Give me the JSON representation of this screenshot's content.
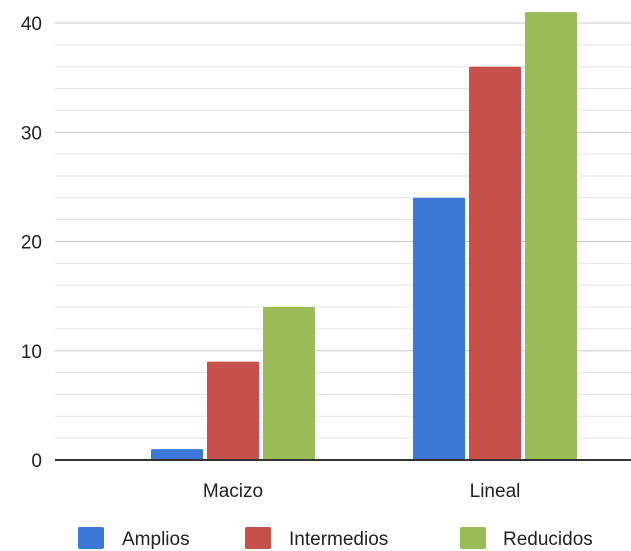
{
  "chart_data": {
    "type": "bar",
    "title": "",
    "xlabel": "",
    "ylabel": "",
    "categories": [
      "Macizo",
      "Lineal"
    ],
    "series": [
      {
        "name": "Amplios",
        "values": [
          1,
          24
        ],
        "color": "#3c78d8"
      },
      {
        "name": "Intermedios",
        "values": [
          9,
          36
        ],
        "color": "#c5504c"
      },
      {
        "name": "Reducidos",
        "values": [
          14,
          41
        ],
        "color": "#9bbb59"
      }
    ],
    "ylim": [
      0,
      42
    ],
    "yticks": [
      0,
      10,
      20,
      30,
      40
    ],
    "grid": true,
    "legend_position": "bottom"
  }
}
